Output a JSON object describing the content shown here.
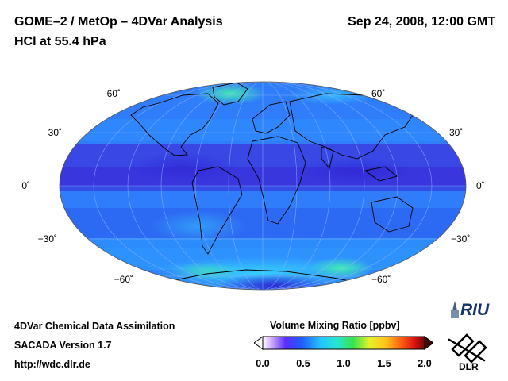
{
  "header": {
    "title": "GOME–2 / MetOp – 4DVar Analysis",
    "subtitle": "HCl at 55.4 hPa",
    "datetime": "Sep 24, 2008, 12:00 GMT"
  },
  "map": {
    "projection": "Hammer–Aitoff (global)",
    "lat_labels": [
      {
        "text": "60˚",
        "lat": 60
      },
      {
        "text": "30˚",
        "lat": 30
      },
      {
        "text": "0˚",
        "lat": 0
      },
      {
        "text": "−30˚",
        "lat": -30
      },
      {
        "text": "−60˚",
        "lat": -60
      }
    ],
    "colors": {
      "background": "#2a73ff",
      "low": "#3a2bd8",
      "high": "#38e6c2",
      "outline": "#000000"
    }
  },
  "footer": {
    "line1": "4DVar Chemical Data Assimilation",
    "line2": "SACADA Version 1.7",
    "line3": "http://wdc.dlr.de"
  },
  "colorbar": {
    "title": "Volume Mixing Ratio [ppbv]",
    "ticks": [
      "0.0",
      "0.5",
      "1.0",
      "1.5",
      "2.0"
    ],
    "range": [
      0,
      2
    ]
  },
  "logos": {
    "riu": "RIU",
    "dlr": "DLR"
  }
}
